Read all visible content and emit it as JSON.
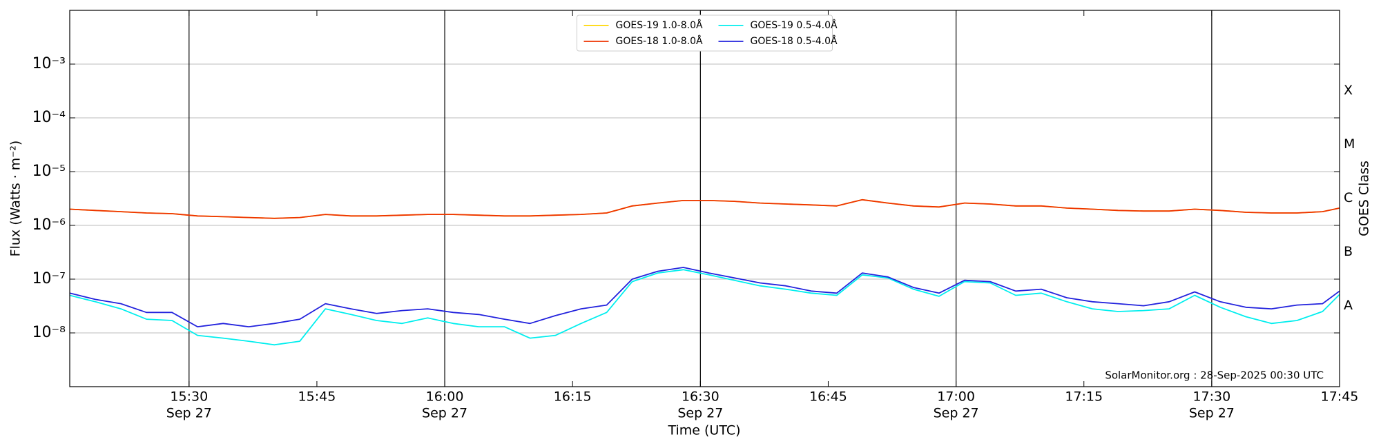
{
  "chart_data": {
    "type": "line",
    "ylabel": "Flux (Watts · m⁻²)",
    "xlabel": "Time (UTC)",
    "y2label": "GOES Class",
    "footnote": "SolarMonitor.org : 28-Sep-2025 00:30 UTC",
    "yscale": "log",
    "grid": true,
    "legend": "upper center",
    "xlim": [
      "15:16",
      "17:45"
    ],
    "xticks": [
      "15:30",
      "15:45",
      "16:00",
      "16:15",
      "16:30",
      "16:45",
      "17:00",
      "17:15",
      "17:30",
      "17:45"
    ],
    "xtick_dates": [
      "Sep 27",
      null,
      "Sep 27",
      null,
      "Sep 27",
      null,
      "Sep 27",
      null,
      "Sep 27",
      null
    ],
    "ylim": [
      1e-09,
      0.01
    ],
    "yticks": [
      {
        "value": 1e-08,
        "label": "10⁻⁸"
      },
      {
        "value": 1e-07,
        "label": "10⁻⁷"
      },
      {
        "value": 1e-06,
        "label": "10⁻⁶"
      },
      {
        "value": 1e-05,
        "label": "10⁻⁵"
      },
      {
        "value": 0.0001,
        "label": "10⁻⁴"
      },
      {
        "value": 0.001,
        "label": "10⁻³"
      }
    ],
    "y2lim": [
      1e-09,
      0.01
    ],
    "y2ticks": [
      {
        "value": 3.2e-08,
        "label": "A"
      },
      {
        "value": 3.2e-07,
        "label": "B"
      },
      {
        "value": 3.2e-06,
        "label": "C"
      },
      {
        "value": 3.2e-05,
        "label": "M"
      },
      {
        "value": 0.00032,
        "label": "X"
      }
    ],
    "x": [
      "15:16",
      "15:19",
      "15:22",
      "15:25",
      "15:28",
      "15:31",
      "15:34",
      "15:37",
      "15:40",
      "15:43",
      "15:46",
      "15:49",
      "15:52",
      "15:55",
      "15:58",
      "16:01",
      "16:04",
      "16:07",
      "16:10",
      "16:13",
      "16:16",
      "16:19",
      "16:22",
      "16:25",
      "16:28",
      "16:31",
      "16:34",
      "16:37",
      "16:40",
      "16:43",
      "16:46",
      "16:49",
      "16:52",
      "16:55",
      "16:58",
      "17:01",
      "17:04",
      "17:07",
      "17:10",
      "17:13",
      "17:16",
      "17:19",
      "17:22",
      "17:25",
      "17:28",
      "17:31",
      "17:34",
      "17:37",
      "17:40",
      "17:43",
      "17:45"
    ],
    "series": [
      {
        "name": "GOES-19 1.0-8.0Å",
        "color": "#ffd700",
        "values": [
          2e-06,
          1.9e-06,
          1.8e-06,
          1.7e-06,
          1.65e-06,
          1.5e-06,
          1.45e-06,
          1.4e-06,
          1.35e-06,
          1.4e-06,
          1.6e-06,
          1.5e-06,
          1.5e-06,
          1.55e-06,
          1.6e-06,
          1.6e-06,
          1.55e-06,
          1.5e-06,
          1.5e-06,
          1.55e-06,
          1.6e-06,
          1.7e-06,
          2.3e-06,
          2.6e-06,
          2.9e-06,
          2.9e-06,
          2.8e-06,
          2.6e-06,
          2.5e-06,
          2.4e-06,
          2.3e-06,
          3e-06,
          2.6e-06,
          2.3e-06,
          2.2e-06,
          2.6e-06,
          2.5e-06,
          2.3e-06,
          2.3e-06,
          2.1e-06,
          2e-06,
          1.9e-06,
          1.85e-06,
          1.85e-06,
          2e-06,
          1.9e-06,
          1.75e-06,
          1.7e-06,
          1.7e-06,
          1.8e-06,
          2.1e-06
        ]
      },
      {
        "name": "GOES-18 1.0-8.0Å",
        "color": "#ee3300",
        "values": [
          2e-06,
          1.9e-06,
          1.8e-06,
          1.7e-06,
          1.65e-06,
          1.5e-06,
          1.45e-06,
          1.4e-06,
          1.35e-06,
          1.4e-06,
          1.6e-06,
          1.5e-06,
          1.5e-06,
          1.55e-06,
          1.6e-06,
          1.6e-06,
          1.55e-06,
          1.5e-06,
          1.5e-06,
          1.55e-06,
          1.6e-06,
          1.7e-06,
          2.3e-06,
          2.6e-06,
          2.9e-06,
          2.9e-06,
          2.8e-06,
          2.6e-06,
          2.5e-06,
          2.4e-06,
          2.3e-06,
          3e-06,
          2.6e-06,
          2.3e-06,
          2.2e-06,
          2.6e-06,
          2.5e-06,
          2.3e-06,
          2.3e-06,
          2.1e-06,
          2e-06,
          1.9e-06,
          1.85e-06,
          1.85e-06,
          2e-06,
          1.9e-06,
          1.75e-06,
          1.7e-06,
          1.7e-06,
          1.8e-06,
          2.1e-06
        ]
      },
      {
        "name": "GOES-19 0.5-4.0Å",
        "color": "#00eeee",
        "values": [
          5e-08,
          3.8e-08,
          2.8e-08,
          1.8e-08,
          1.7e-08,
          9e-09,
          8e-09,
          7e-09,
          6e-09,
          7e-09,
          2.8e-08,
          2.2e-08,
          1.7e-08,
          1.5e-08,
          1.9e-08,
          1.5e-08,
          1.3e-08,
          1.3e-08,
          8e-09,
          9e-09,
          1.5e-08,
          2.4e-08,
          9e-08,
          1.3e-07,
          1.5e-07,
          1.2e-07,
          9.5e-08,
          7.5e-08,
          6.5e-08,
          5.5e-08,
          5e-08,
          1.2e-07,
          1.05e-07,
          6.5e-08,
          4.8e-08,
          9e-08,
          8.5e-08,
          5e-08,
          5.5e-08,
          3.8e-08,
          2.8e-08,
          2.5e-08,
          2.6e-08,
          2.8e-08,
          5e-08,
          3e-08,
          2e-08,
          1.5e-08,
          1.7e-08,
          2.5e-08,
          5.2e-08
        ]
      },
      {
        "name": "GOES-18 0.5-4.0Å",
        "color": "#2222dd",
        "values": [
          5.5e-08,
          4.2e-08,
          3.5e-08,
          2.4e-08,
          2.4e-08,
          1.3e-08,
          1.5e-08,
          1.3e-08,
          1.5e-08,
          1.8e-08,
          3.5e-08,
          2.8e-08,
          2.3e-08,
          2.6e-08,
          2.8e-08,
          2.4e-08,
          2.2e-08,
          1.8e-08,
          1.5e-08,
          2.1e-08,
          2.8e-08,
          3.3e-08,
          1e-07,
          1.4e-07,
          1.65e-07,
          1.3e-07,
          1.05e-07,
          8.5e-08,
          7.5e-08,
          6e-08,
          5.5e-08,
          1.3e-07,
          1.1e-07,
          7e-08,
          5.5e-08,
          9.5e-08,
          9e-08,
          6e-08,
          6.5e-08,
          4.5e-08,
          3.8e-08,
          3.5e-08,
          3.2e-08,
          3.8e-08,
          5.8e-08,
          3.8e-08,
          3e-08,
          2.8e-08,
          3.3e-08,
          3.5e-08,
          6e-08
        ]
      }
    ]
  }
}
